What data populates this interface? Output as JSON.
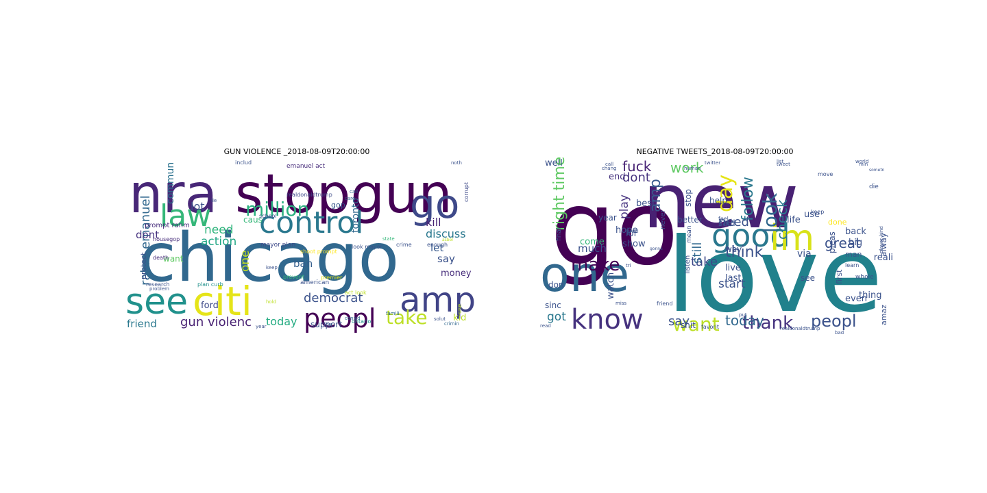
{
  "panels": [
    {
      "title": "GUN VIOLENCE _2018-08-09T20:00:00",
      "words": [
        {
          "text": "nra",
          "size": 78,
          "color": "#482777"
        },
        {
          "text": "stopgun",
          "size": 78,
          "color": "#440154"
        },
        {
          "text": "chicago",
          "size": 98,
          "color": "#31688e"
        },
        {
          "text": "control",
          "size": 44,
          "color": "#2a788e"
        },
        {
          "text": "law",
          "size": 44,
          "color": "#35b779"
        },
        {
          "text": "million",
          "size": 28,
          "color": "#2ab07f"
        },
        {
          "text": "go",
          "size": 58,
          "color": "#3e4989"
        },
        {
          "text": "see",
          "size": 52,
          "color": "#21918c"
        },
        {
          "text": "citi",
          "size": 58,
          "color": "#e5e419"
        },
        {
          "text": "amp",
          "size": 50,
          "color": "#414487"
        },
        {
          "text": "peopl",
          "size": 38,
          "color": "#440154"
        },
        {
          "text": "take",
          "size": 28,
          "color": "#bddf26"
        },
        {
          "text": "democrat",
          "size": 18,
          "color": "#3b528b"
        },
        {
          "text": "gun violenc",
          "size": 18,
          "color": "#482173"
        },
        {
          "text": "today",
          "size": 16,
          "color": "#25ac82"
        },
        {
          "text": "friend",
          "size": 15,
          "color": "#2a788e"
        },
        {
          "text": "rahm emanuel",
          "size": 18,
          "color": "#31688e"
        },
        {
          "text": "commun",
          "size": 14,
          "color": "#2c728e"
        },
        {
          "text": "lot",
          "size": 16,
          "color": "#3b528b"
        },
        {
          "text": "need",
          "size": 17,
          "color": "#2fb47c"
        },
        {
          "text": "action",
          "size": 17,
          "color": "#22a785"
        },
        {
          "text": "dont",
          "size": 15,
          "color": "#46337f"
        },
        {
          "text": "ban",
          "size": 15,
          "color": "#355f8d"
        },
        {
          "text": "one",
          "size": 17,
          "color": "#c2df23"
        },
        {
          "text": "kill",
          "size": 16,
          "color": "#482475"
        },
        {
          "text": "discuss",
          "size": 16,
          "color": "#2a788e"
        },
        {
          "text": "let",
          "size": 15,
          "color": "#38598c"
        },
        {
          "text": "say",
          "size": 15,
          "color": "#3b528b"
        },
        {
          "text": "money",
          "size": 13,
          "color": "#472d7b"
        },
        {
          "text": "kid",
          "size": 13,
          "color": "#bddf26"
        },
        {
          "text": "support",
          "size": 12,
          "color": "#3b528b"
        },
        {
          "text": "toronto",
          "size": 14,
          "color": "#31688e"
        },
        {
          "text": "ford",
          "size": 13,
          "color": "#3e4a89"
        },
        {
          "text": "want",
          "size": 12,
          "color": "#5ec962"
        },
        {
          "text": "protect",
          "size": 11,
          "color": "#3b528b"
        },
        {
          "text": "caus",
          "size": 12,
          "color": "#35b779"
        },
        {
          "text": "gop",
          "size": 11,
          "color": "#38598c"
        },
        {
          "text": "prompt rahm",
          "size": 10,
          "color": "#472d7b"
        },
        {
          "text": "mayor plan",
          "size": 9,
          "color": "#3e4a89"
        },
        {
          "text": "shoot prompt",
          "size": 8,
          "color": "#fde725"
        },
        {
          "text": "emanuel act",
          "size": 9,
          "color": "#472d7b"
        },
        {
          "text": "includ",
          "size": 8,
          "color": "#3b528b"
        },
        {
          "text": "realdonaldtrump",
          "size": 8,
          "color": "#3e4a89"
        },
        {
          "text": "corrupt",
          "size": 8,
          "color": "#3e4a89"
        },
        {
          "text": "housegop",
          "size": 8,
          "color": "#472d7b"
        },
        {
          "text": "death",
          "size": 8,
          "color": "#472d7b"
        },
        {
          "text": "research",
          "size": 8,
          "color": "#3b528b"
        },
        {
          "text": "plan curb",
          "size": 8,
          "color": "#21918c"
        },
        {
          "text": "american",
          "size": 9,
          "color": "#3b528b"
        },
        {
          "text": "prevent",
          "size": 8,
          "color": "#35b779"
        },
        {
          "text": "premier",
          "size": 8,
          "color": "#e5e419"
        },
        {
          "text": "look mayor",
          "size": 8,
          "color": "#3b528b"
        },
        {
          "text": "act look",
          "size": 8,
          "color": "#bddf26"
        },
        {
          "text": "crime",
          "size": 8,
          "color": "#3b528b"
        },
        {
          "text": "enough",
          "size": 8,
          "color": "#3b528b"
        },
        {
          "text": "ontario",
          "size": 8,
          "color": "#21918c"
        },
        {
          "text": "school",
          "size": 8,
          "color": "#3b528b"
        },
        {
          "text": "problem",
          "size": 7,
          "color": "#3b528b"
        },
        {
          "text": "keep",
          "size": 7,
          "color": "#3b528b"
        },
        {
          "text": "famili",
          "size": 7,
          "color": "#31688e"
        },
        {
          "text": "consid",
          "size": 7,
          "color": "#31688e"
        },
        {
          "text": "solut",
          "size": 7,
          "color": "#3b528b"
        },
        {
          "text": "live",
          "size": 7,
          "color": "#3b528b"
        },
        {
          "text": "crimin",
          "size": 7,
          "color": "#31688e"
        },
        {
          "text": "year",
          "size": 7,
          "color": "#3b528b"
        },
        {
          "text": "use",
          "size": 8,
          "color": "#bddf26"
        },
        {
          "text": "noth",
          "size": 7,
          "color": "#3b528b"
        },
        {
          "text": "call",
          "size": 7,
          "color": "#31688e"
        },
        {
          "text": "care",
          "size": 7,
          "color": "#31688e"
        },
        {
          "text": "state",
          "size": 7,
          "color": "#35b779"
        },
        {
          "text": "lie",
          "size": 7,
          "color": "#3b528b"
        },
        {
          "text": "hold",
          "size": 7,
          "color": "#bddf26"
        },
        {
          "text": "asbel",
          "size": 6,
          "color": "#bddf26"
        }
      ]
    },
    {
      "title": "NEGATIVE TWEETS_2018-08-09T20:00:00",
      "words": [
        {
          "text": "go",
          "size": 150,
          "color": "#440154"
        },
        {
          "text": "new",
          "size": 110,
          "color": "#482173"
        },
        {
          "text": "love",
          "size": 150,
          "color": "#21818c"
        },
        {
          "text": "one",
          "size": 70,
          "color": "#31688e"
        },
        {
          "text": "good",
          "size": 46,
          "color": "#2a788e"
        },
        {
          "text": "im",
          "size": 52,
          "color": "#d8e219"
        },
        {
          "text": "know",
          "size": 40,
          "color": "#46327e"
        },
        {
          "text": "want",
          "size": 28,
          "color": "#bddf26"
        },
        {
          "text": "thank",
          "size": 26,
          "color": "#46337f"
        },
        {
          "text": "peopl",
          "size": 24,
          "color": "#3b528b"
        },
        {
          "text": "today",
          "size": 20,
          "color": "#31688e"
        },
        {
          "text": "make",
          "size": 26,
          "color": "#440154"
        },
        {
          "text": "think",
          "size": 22,
          "color": "#3b528b"
        },
        {
          "text": "day",
          "size": 30,
          "color": "#e5e419"
        },
        {
          "text": "amp",
          "size": 22,
          "color": "#38598c"
        },
        {
          "text": "look",
          "size": 28,
          "color": "#31688e"
        },
        {
          "text": "follow",
          "size": 22,
          "color": "#2a788e"
        },
        {
          "text": "great",
          "size": 20,
          "color": "#3b528b"
        },
        {
          "text": "check",
          "size": 20,
          "color": "#2a788e"
        },
        {
          "text": "right time",
          "size": 22,
          "color": "#5ec962"
        },
        {
          "text": "fuck",
          "size": 20,
          "color": "#482475"
        },
        {
          "text": "work",
          "size": 20,
          "color": "#5ec962"
        },
        {
          "text": "dont",
          "size": 18,
          "color": "#46337f"
        },
        {
          "text": "need",
          "size": 18,
          "color": "#3b528b"
        },
        {
          "text": "take",
          "size": 18,
          "color": "#3e4a89"
        },
        {
          "text": "still",
          "size": 18,
          "color": "#31688e"
        },
        {
          "text": "start",
          "size": 17,
          "color": "#3b528b"
        },
        {
          "text": "say",
          "size": 18,
          "color": "#3b528b"
        },
        {
          "text": "got",
          "size": 17,
          "color": "#2a788e"
        },
        {
          "text": "play",
          "size": 17,
          "color": "#46337f"
        },
        {
          "text": "well",
          "size": 13,
          "color": "#3b528b"
        },
        {
          "text": "end",
          "size": 13,
          "color": "#46337f"
        },
        {
          "text": "hope",
          "size": 13,
          "color": "#3b528b"
        },
        {
          "text": "best",
          "size": 13,
          "color": "#3b528b"
        },
        {
          "text": "come",
          "size": 13,
          "color": "#35b779"
        },
        {
          "text": "much",
          "size": 15,
          "color": "#3b528b"
        },
        {
          "text": "show",
          "size": 13,
          "color": "#3b528b"
        },
        {
          "text": "lol",
          "size": 13,
          "color": "#3b528b"
        },
        {
          "text": "year",
          "size": 12,
          "color": "#3b528b"
        },
        {
          "text": "better",
          "size": 12,
          "color": "#3b528b"
        },
        {
          "text": "stop",
          "size": 12,
          "color": "#3b528b"
        },
        {
          "text": "help",
          "size": 12,
          "color": "#3b528b"
        },
        {
          "text": "life",
          "size": 13,
          "color": "#3b528b"
        },
        {
          "text": "use",
          "size": 13,
          "color": "#3b528b"
        },
        {
          "text": "said",
          "size": 12,
          "color": "#3b528b"
        },
        {
          "text": "way",
          "size": 12,
          "color": "#3b528b"
        },
        {
          "text": "back",
          "size": 13,
          "color": "#3b528b"
        },
        {
          "text": "big",
          "size": 13,
          "color": "#3b528b"
        },
        {
          "text": "via",
          "size": 14,
          "color": "#3b528b"
        },
        {
          "text": "live",
          "size": 13,
          "color": "#3b528b"
        },
        {
          "text": "last",
          "size": 13,
          "color": "#3b528b"
        },
        {
          "text": "watch",
          "size": 13,
          "color": "#3b528b"
        },
        {
          "text": "even",
          "size": 13,
          "color": "#3b528b"
        },
        {
          "text": "thing",
          "size": 13,
          "color": "#3b528b"
        },
        {
          "text": "sinc",
          "size": 12,
          "color": "#3b528b"
        },
        {
          "text": "shit",
          "size": 12,
          "color": "#3b528b"
        },
        {
          "text": "don",
          "size": 12,
          "color": "#3b528b"
        },
        {
          "text": "amaz",
          "size": 11,
          "color": "#3b528b"
        },
        {
          "text": "alway",
          "size": 12,
          "color": "#3b528b"
        },
        {
          "text": "reali",
          "size": 13,
          "color": "#3b528b"
        },
        {
          "text": "done",
          "size": 11,
          "color": "#fde725"
        },
        {
          "text": "pleas",
          "size": 12,
          "color": "#3b528b"
        },
        {
          "text": "whole",
          "size": 9,
          "color": "#3b528b"
        },
        {
          "text": "realdonaldtrump",
          "size": 7,
          "color": "#3b528b"
        },
        {
          "text": "favorit",
          "size": 8,
          "color": "#3b528b"
        },
        {
          "text": "first",
          "size": 11,
          "color": "#3b528b"
        },
        {
          "text": "listen",
          "size": 10,
          "color": "#3b528b"
        },
        {
          "text": "man",
          "size": 11,
          "color": "#3b528b"
        },
        {
          "text": "never",
          "size": 10,
          "color": "#3b528b"
        },
        {
          "text": "final",
          "size": 9,
          "color": "#3b528b"
        },
        {
          "text": "die",
          "size": 9,
          "color": "#3b528b"
        },
        {
          "text": "feel",
          "size": 8,
          "color": "#3b528b"
        },
        {
          "text": "keep",
          "size": 8,
          "color": "#3b528b"
        },
        {
          "text": "move",
          "size": 8,
          "color": "#3b528b"
        },
        {
          "text": "twitter",
          "size": 7,
          "color": "#3b528b"
        },
        {
          "text": "tweet",
          "size": 7,
          "color": "#3b528b"
        },
        {
          "text": "friend",
          "size": 8,
          "color": "#3b528b"
        },
        {
          "text": "human",
          "size": 7,
          "color": "#3b528b"
        },
        {
          "text": "crazi",
          "size": 7,
          "color": "#3b528b"
        },
        {
          "text": "learn",
          "size": 8,
          "color": "#3b528b"
        },
        {
          "text": "see",
          "size": 12,
          "color": "#3b528b"
        },
        {
          "text": "mean",
          "size": 9,
          "color": "#3b528b"
        },
        {
          "text": "put",
          "size": 7,
          "color": "#3b528b"
        },
        {
          "text": "call",
          "size": 7,
          "color": "#3b528b"
        },
        {
          "text": "chang",
          "size": 7,
          "color": "#3b528b"
        },
        {
          "text": "kind",
          "size": 7,
          "color": "#3b528b"
        },
        {
          "text": "player",
          "size": 7,
          "color": "#3b528b"
        },
        {
          "text": "bad",
          "size": 7,
          "color": "#3b528b"
        },
        {
          "text": "read",
          "size": 7,
          "color": "#3b528b"
        },
        {
          "text": "min",
          "size": 7,
          "color": "#3b528b"
        },
        {
          "text": "list",
          "size": 7,
          "color": "#3b528b"
        },
        {
          "text": "miss",
          "size": 7,
          "color": "#3b528b"
        },
        {
          "text": "tri",
          "size": 7,
          "color": "#3b528b"
        },
        {
          "text": "world",
          "size": 7,
          "color": "#3b528b"
        },
        {
          "text": "sometn",
          "size": 6,
          "color": "#3b528b"
        },
        {
          "text": "gonna",
          "size": 6,
          "color": "#3b528b"
        }
      ]
    }
  ]
}
